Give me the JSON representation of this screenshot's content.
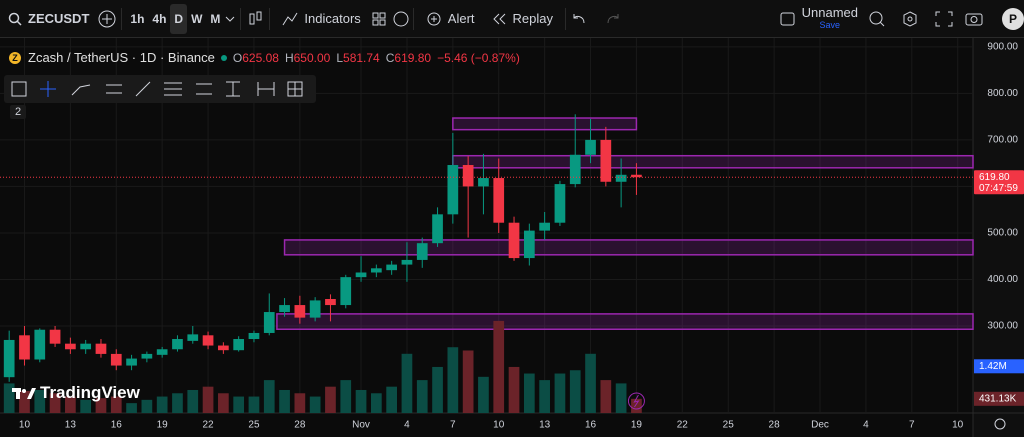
{
  "toolbar": {
    "symbol": "ZECUSDT",
    "intervals": [
      "1h",
      "4h",
      "D",
      "W",
      "M"
    ],
    "indicators": "Indicators",
    "alert": "Alert",
    "replay": "Replay",
    "layout_name": "Unnamed",
    "layout_status": "Save",
    "avatar": "P"
  },
  "legend": {
    "symbol": "Zcash / TetherUS · 1D · Binance",
    "fields": [
      {
        "label": "O",
        "value": "625.08"
      },
      {
        "label": "H",
        "value": "650.00"
      },
      {
        "label": "L",
        "value": "581.74"
      },
      {
        "label": "C",
        "value": "619.80"
      }
    ],
    "change": "−5.46 (−0.87%)"
  },
  "drawing_count": "2",
  "logo": "TradingView",
  "chart_data": {
    "type": "candlestick",
    "x": [
      0,
      1,
      2,
      3,
      4,
      5,
      6,
      7,
      8,
      9,
      10,
      11,
      12,
      13,
      14,
      15,
      16,
      17,
      18,
      19,
      20,
      21,
      22,
      23,
      24,
      25,
      26,
      27,
      28,
      29,
      30,
      31,
      32,
      33,
      34,
      35,
      36,
      37,
      38,
      39,
      40,
      41
    ],
    "open": [
      190,
      280,
      228,
      292,
      262,
      250,
      262,
      240,
      215,
      230,
      238,
      250,
      268,
      280,
      258,
      248,
      272,
      285,
      330,
      345,
      318,
      358,
      345,
      405,
      415,
      420,
      432,
      442,
      478,
      540,
      646,
      600,
      618,
      522,
      446,
      505,
      522,
      605,
      668,
      700,
      610,
      625.08
    ],
    "high": [
      290,
      300,
      295,
      300,
      275,
      270,
      272,
      250,
      238,
      245,
      255,
      280,
      300,
      288,
      265,
      278,
      290,
      370,
      360,
      365,
      362,
      368,
      410,
      450,
      432,
      440,
      480,
      490,
      555,
      715,
      665,
      670,
      660,
      535,
      520,
      545,
      612,
      755,
      745,
      728,
      660,
      650
    ],
    "low": [
      180,
      215,
      222,
      255,
      240,
      240,
      232,
      205,
      205,
      222,
      232,
      245,
      262,
      250,
      240,
      245,
      265,
      280,
      320,
      305,
      310,
      310,
      338,
      395,
      405,
      410,
      395,
      425,
      470,
      520,
      490,
      540,
      500,
      440,
      430,
      485,
      515,
      598,
      650,
      600,
      555,
      581.74
    ],
    "close": [
      270,
      228,
      292,
      262,
      250,
      262,
      240,
      215,
      230,
      240,
      250,
      272,
      282,
      258,
      248,
      272,
      285,
      330,
      345,
      318,
      355,
      345,
      405,
      415,
      424,
      432,
      442,
      478,
      540,
      646,
      600,
      618,
      522,
      446,
      505,
      522,
      605,
      668,
      700,
      610,
      625,
      619.8
    ],
    "volume": [
      900000,
      670000,
      700000,
      600000,
      500000,
      400000,
      450000,
      500000,
      300000,
      400000,
      500000,
      600000,
      700000,
      800000,
      600000,
      500000,
      500000,
      1000000,
      700000,
      600000,
      500000,
      800000,
      1000000,
      700000,
      600000,
      800000,
      1800000,
      1000000,
      1400000,
      2000000,
      1900000,
      1100000,
      2800000,
      1400000,
      1200000,
      1000000,
      1200000,
      1300000,
      1800000,
      1000000,
      900000,
      431130
    ],
    "volume_value_labels": {
      "41": "431.13K"
    },
    "up_color": "#089981",
    "down_color": "#f23645",
    "up_volume_color": "#0b4d45",
    "down_volume_color": "#6b2329",
    "xlim": [
      -0.6,
      63
    ],
    "xticks": [
      {
        "value": 1,
        "label": "10"
      },
      {
        "value": 4,
        "label": "13"
      },
      {
        "value": 7,
        "label": "16"
      },
      {
        "value": 10,
        "label": "19"
      },
      {
        "value": 13,
        "label": "22"
      },
      {
        "value": 16,
        "label": "25"
      },
      {
        "value": 19,
        "label": "28"
      },
      {
        "value": 23,
        "label": "Nov"
      },
      {
        "value": 26,
        "label": "4"
      },
      {
        "value": 29,
        "label": "7"
      },
      {
        "value": 32,
        "label": "10"
      },
      {
        "value": 35,
        "label": "13"
      },
      {
        "value": 38,
        "label": "16"
      },
      {
        "value": 41,
        "label": "19"
      },
      {
        "value": 44,
        "label": "22"
      },
      {
        "value": 47,
        "label": "25"
      },
      {
        "value": 50,
        "label": "28"
      },
      {
        "value": 53,
        "label": "Dec"
      },
      {
        "value": 56,
        "label": "4"
      },
      {
        "value": 59,
        "label": "7"
      },
      {
        "value": 62,
        "label": "10"
      }
    ],
    "ylim": [
      113,
      919
    ],
    "yticks": [
      {
        "value": 900,
        "label": "900.00"
      },
      {
        "value": 800,
        "label": "800.00"
      },
      {
        "value": 700,
        "label": "700.00"
      },
      {
        "value": 600,
        "label": "600.00"
      },
      {
        "value": 500,
        "label": "500.00"
      },
      {
        "value": 400,
        "label": "400.00"
      },
      {
        "value": 300,
        "label": "300.00"
      }
    ],
    "y2lim": [
      0,
      11400000
    ],
    "grid": true,
    "price_line": {
      "value": 619.8,
      "label": "619.80",
      "countdown": "07:47:59"
    },
    "volume_ma": {
      "value": 1420000,
      "label": "1.42M",
      "color": "#2962ff"
    },
    "zones": [
      {
        "low": 722,
        "high": 747,
        "from": 29,
        "to": 41
      },
      {
        "low": 640,
        "high": 666,
        "from": 29
      },
      {
        "low": 453,
        "high": 485,
        "from": 18
      },
      {
        "low": 293,
        "high": 326,
        "from": 17.5
      }
    ],
    "zone_color": "#9c27b0"
  }
}
